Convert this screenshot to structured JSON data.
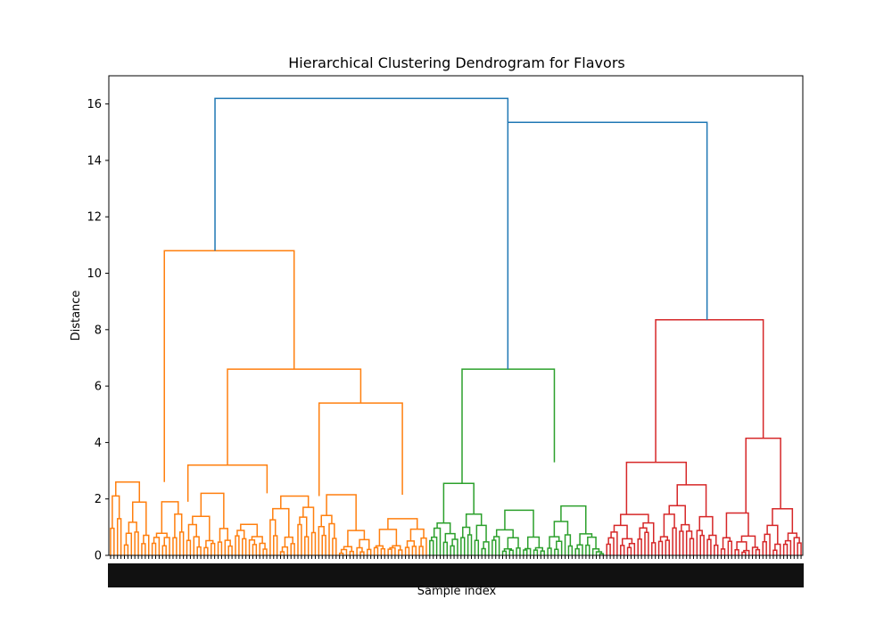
{
  "chart_data": {
    "type": "dendrogram",
    "title": "Hierarchical Clustering Dendrogram for Flavors",
    "xlabel": "Sample index",
    "ylabel": "Distance",
    "ylim": [
      0,
      17
    ],
    "yticks": [
      0,
      2,
      4,
      6,
      8,
      10,
      12,
      14,
      16
    ],
    "grid": false,
    "leaf_count": 200,
    "colors": {
      "orange": "#ff7f0e",
      "green": "#2ca02c",
      "red": "#d62728",
      "blue": "#1f77b4"
    },
    "clusters": [
      {
        "color_key": "orange",
        "leaf_start": 0,
        "leaf_end": 92,
        "merge_height": 10.8
      },
      {
        "color_key": "green",
        "leaf_start": 92,
        "leaf_end": 143,
        "merge_height": 6.6
      },
      {
        "color_key": "red",
        "leaf_start": 143,
        "leaf_end": 200,
        "merge_height": 8.35
      }
    ],
    "merges": [
      {
        "color_key": "blue",
        "height": 16.2,
        "left": 0,
        "right": 1
      },
      {
        "color_key": "blue",
        "height": 15.35,
        "left": 1,
        "right": 2
      }
    ],
    "major_links": [
      {
        "color_key": "orange",
        "height": 10.8,
        "left_x": 0.08,
        "right_x": 0.267,
        "left_h": 2.6,
        "right_h": 6.6
      },
      {
        "color_key": "orange",
        "height": 6.6,
        "left_x": 0.171,
        "right_x": 0.363,
        "left_h": 3.2,
        "right_h": 5.4
      },
      {
        "color_key": "orange",
        "height": 5.4,
        "left_x": 0.303,
        "right_x": 0.423,
        "left_h": 2.1,
        "right_h": 2.15
      },
      {
        "color_key": "orange",
        "height": 3.2,
        "left_x": 0.114,
        "right_x": 0.228,
        "left_h": 1.9,
        "right_h": 2.2
      },
      {
        "color_key": "green",
        "height": 6.6,
        "left_x": 0.509,
        "right_x": 0.642,
        "left_h": 2.55,
        "right_h": 3.3
      },
      {
        "color_key": "red",
        "height": 8.35,
        "left_x": 0.788,
        "right_x": 0.943,
        "left_h": 3.3,
        "right_h": 4.15
      },
      {
        "color_key": "red",
        "height": 3.3,
        "left_x": 0.746,
        "right_x": 0.832,
        "left_h": 1.45,
        "right_h": 2.5
      },
      {
        "color_key": "red",
        "height": 4.15,
        "left_x": 0.918,
        "right_x": 0.968,
        "left_h": 1.5,
        "right_h": 1.65
      }
    ]
  }
}
